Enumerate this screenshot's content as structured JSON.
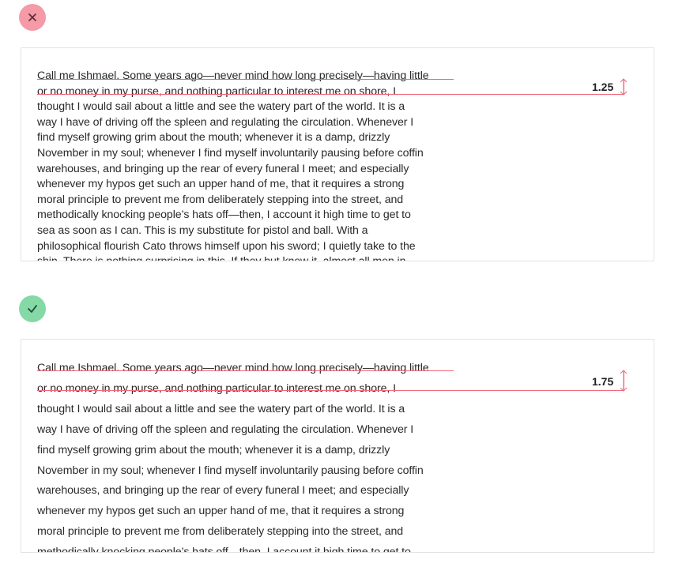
{
  "examples": {
    "bad": {
      "status_icon": "close-icon",
      "status_color": "#f59aa6",
      "line_height_label": "1.25"
    },
    "good": {
      "status_icon": "check-icon",
      "status_color": "#84d9a6",
      "line_height_label": "1.75"
    }
  },
  "highlight_color": "#f06a7c",
  "paragraph_lines": [
    "Call me Ishmael. Some years ago—never mind how long precisely—having little",
    "or no money in my purse, and nothing particular to interest me on shore, I",
    "thought I would sail about a little and see the watery part of the world. It is a",
    "way I have of driving off the spleen and regulating the circulation. Whenever I",
    "find myself growing grim about the mouth; whenever it is a damp, drizzly",
    "November in my soul; whenever I find myself involuntarily pausing before coffin",
    "warehouses, and bringing up the rear of every funeral I meet; and especially",
    "whenever my hypos get such an upper hand of me, that it requires a strong",
    "moral principle to prevent me from deliberately stepping into the street, and",
    "methodically knocking people’s hats off—then, I account it high time to get to",
    "sea as soon as I can. This is my substitute for pistol and ball. With a",
    "philosophical flourish Cato throws himself upon his sword; I quietly take to the",
    "ship. There is nothing surprising in this. If they but knew it, almost all men in"
  ]
}
